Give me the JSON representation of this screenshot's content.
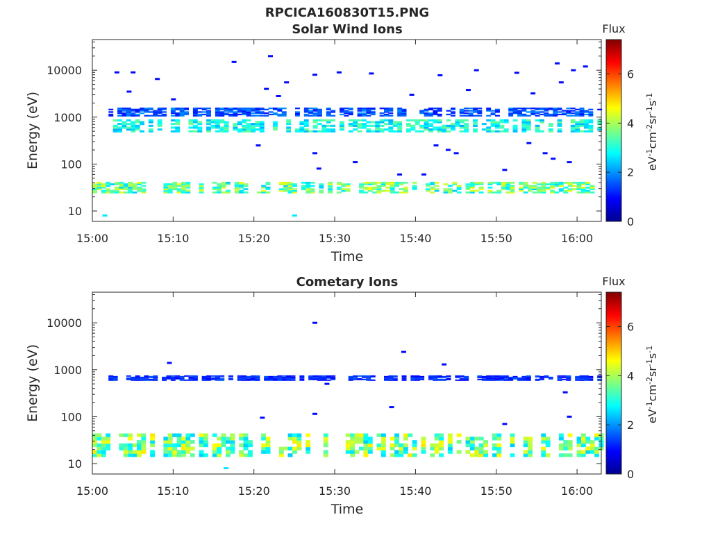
{
  "figure_title": "RPCICA160830T15.PNG",
  "panels": [
    {
      "title": "Solar Wind Ions",
      "xlabel": "Time",
      "ylabel": "Energy (eV)",
      "colorbar_title": "Flux",
      "colorbar_label": "eV-1cm-2sr-1s-1"
    },
    {
      "title": "Cometary Ions",
      "xlabel": "Time",
      "ylabel": "Energy (eV)",
      "colorbar_title": "Flux",
      "colorbar_label": "eV-1cm-2sr-1s-1"
    }
  ],
  "colors": {
    "colormap": "jet",
    "axes": "#262626",
    "background": "#ffffff"
  },
  "chart_data": [
    {
      "type": "heatmap",
      "title": "Solar Wind Ions",
      "xlabel": "Time",
      "ylabel": "Energy (eV)",
      "y_scale": "log",
      "xlim": [
        "15:00",
        "16:03"
      ],
      "ylim": [
        6,
        45000
      ],
      "x_ticks": [
        "15:00",
        "15:10",
        "15:20",
        "15:30",
        "15:40",
        "15:50",
        "16:00"
      ],
      "y_ticks": [
        10,
        100,
        1000,
        10000
      ],
      "y_tick_labels": [
        "10",
        "100",
        "1000",
        "10000"
      ],
      "colorbar": {
        "label": "eV-1cm-2sr-1s-1",
        "title": "Flux",
        "range": [
          0,
          7.4
        ],
        "ticks": [
          0,
          2,
          4,
          6
        ]
      },
      "bands": [
        {
          "energy_ev": [
            24,
            42
          ],
          "time": [
            "15:00",
            "16:03"
          ],
          "flux": [
            2.4,
            4.6
          ]
        },
        {
          "energy_ev": [
            480,
            900
          ],
          "time": [
            "15:02",
            "16:03"
          ],
          "flux": [
            2.2,
            3.6
          ]
        },
        {
          "energy_ev": [
            1050,
            1600
          ],
          "time": [
            "15:02",
            "16:03"
          ],
          "flux": [
            1.0,
            2.0
          ]
        }
      ],
      "spots": [
        {
          "time": "15:01:30",
          "energy_ev": 8,
          "flux": 2.6
        },
        {
          "time": "15:25:00",
          "energy_ev": 8,
          "flux": 2.6
        },
        {
          "time": "15:22:00",
          "energy_ev": 20000,
          "flux": 1.0
        },
        {
          "time": "15:17:30",
          "energy_ev": 15000,
          "flux": 1.0
        },
        {
          "time": "15:27:30",
          "energy_ev": 8000,
          "flux": 1.0
        },
        {
          "time": "15:30:30",
          "energy_ev": 9000,
          "flux": 1.0
        },
        {
          "time": "15:34:30",
          "energy_ev": 8500,
          "flux": 1.0
        },
        {
          "time": "15:43:00",
          "energy_ev": 7800,
          "flux": 1.0
        },
        {
          "time": "15:47:30",
          "energy_ev": 10000,
          "flux": 1.0
        },
        {
          "time": "15:52:30",
          "energy_ev": 8800,
          "flux": 1.0
        },
        {
          "time": "15:57:30",
          "energy_ev": 14000,
          "flux": 1.0
        },
        {
          "time": "15:59:30",
          "energy_ev": 10000,
          "flux": 1.0
        },
        {
          "time": "16:01:00",
          "energy_ev": 12000,
          "flux": 1.0
        },
        {
          "time": "15:24:00",
          "energy_ev": 5500,
          "flux": 1.0
        },
        {
          "time": "15:21:30",
          "energy_ev": 4000,
          "flux": 1.0
        },
        {
          "time": "15:23:00",
          "energy_ev": 2800,
          "flux": 1.0
        },
        {
          "time": "15:39:30",
          "energy_ev": 3000,
          "flux": 1.0
        },
        {
          "time": "15:46:30",
          "energy_ev": 3800,
          "flux": 1.0
        },
        {
          "time": "15:54:30",
          "energy_ev": 3200,
          "flux": 1.0
        },
        {
          "time": "15:58:00",
          "energy_ev": 5500,
          "flux": 1.0
        },
        {
          "time": "15:20:30",
          "energy_ev": 250,
          "flux": 1.0
        },
        {
          "time": "15:27:30",
          "energy_ev": 170,
          "flux": 1.0
        },
        {
          "time": "15:32:30",
          "energy_ev": 110,
          "flux": 1.0
        },
        {
          "time": "15:28:00",
          "energy_ev": 80,
          "flux": 1.0
        },
        {
          "time": "15:42:30",
          "energy_ev": 250,
          "flux": 1.0
        },
        {
          "time": "15:44:00",
          "energy_ev": 200,
          "flux": 1.0
        },
        {
          "time": "15:45:00",
          "energy_ev": 170,
          "flux": 1.0
        },
        {
          "time": "15:54:00",
          "energy_ev": 280,
          "flux": 1.0
        },
        {
          "time": "15:56:00",
          "energy_ev": 170,
          "flux": 1.0
        },
        {
          "time": "15:57:00",
          "energy_ev": 130,
          "flux": 1.0
        },
        {
          "time": "15:59:00",
          "energy_ev": 110,
          "flux": 1.0
        },
        {
          "time": "15:51:00",
          "energy_ev": 75,
          "flux": 1.0
        },
        {
          "time": "15:38:00",
          "energy_ev": 60,
          "flux": 1.0
        },
        {
          "time": "15:41:00",
          "energy_ev": 60,
          "flux": 1.0
        },
        {
          "time": "15:03:00",
          "energy_ev": 9000,
          "flux": 1.0
        },
        {
          "time": "15:05:00",
          "energy_ev": 9000,
          "flux": 1.0
        },
        {
          "time": "15:10:00",
          "energy_ev": 2400,
          "flux": 1.0
        },
        {
          "time": "15:04:30",
          "energy_ev": 3500,
          "flux": 1.0
        },
        {
          "time": "15:08:00",
          "energy_ev": 6500,
          "flux": 1.0
        }
      ]
    },
    {
      "type": "heatmap",
      "title": "Cometary Ions",
      "xlabel": "Time",
      "ylabel": "Energy (eV)",
      "y_scale": "log",
      "xlim": [
        "15:00",
        "16:03"
      ],
      "ylim": [
        6,
        45000
      ],
      "x_ticks": [
        "15:00",
        "15:10",
        "15:20",
        "15:30",
        "15:40",
        "15:50",
        "16:00"
      ],
      "y_ticks": [
        10,
        100,
        1000,
        10000
      ],
      "y_tick_labels": [
        "10",
        "100",
        "1000",
        "10000"
      ],
      "colorbar": {
        "label": "eV-1cm-2sr-1s-1",
        "title": "Flux",
        "range": [
          0,
          7.4
        ],
        "ticks": [
          0,
          2,
          4,
          6
        ]
      },
      "bands": [
        {
          "energy_ev": [
            14,
            44
          ],
          "time": [
            "15:00",
            "16:03"
          ],
          "flux": [
            2.4,
            4.8
          ]
        },
        {
          "energy_ev": [
            600,
            760
          ],
          "time": [
            "15:02",
            "16:03"
          ],
          "flux": [
            0.9,
            1.6
          ]
        }
      ],
      "spots": [
        {
          "time": "15:27:30",
          "energy_ev": 10000,
          "flux": 1.0
        },
        {
          "time": "15:38:30",
          "energy_ev": 2400,
          "flux": 1.0
        },
        {
          "time": "15:43:30",
          "energy_ev": 1300,
          "flux": 1.0
        },
        {
          "time": "15:09:30",
          "energy_ev": 1400,
          "flux": 1.0
        },
        {
          "time": "15:37:00",
          "energy_ev": 160,
          "flux": 1.0
        },
        {
          "time": "15:27:30",
          "energy_ev": 115,
          "flux": 1.0
        },
        {
          "time": "15:21:00",
          "energy_ev": 95,
          "flux": 1.0
        },
        {
          "time": "15:59:00",
          "energy_ev": 100,
          "flux": 1.0
        },
        {
          "time": "15:51:00",
          "energy_ev": 70,
          "flux": 1.0
        },
        {
          "time": "15:58:30",
          "energy_ev": 330,
          "flux": 1.0
        },
        {
          "time": "15:29:00",
          "energy_ev": 500,
          "flux": 1.0
        },
        {
          "time": "15:16:30",
          "energy_ev": 8,
          "flux": 2.6
        }
      ]
    }
  ]
}
